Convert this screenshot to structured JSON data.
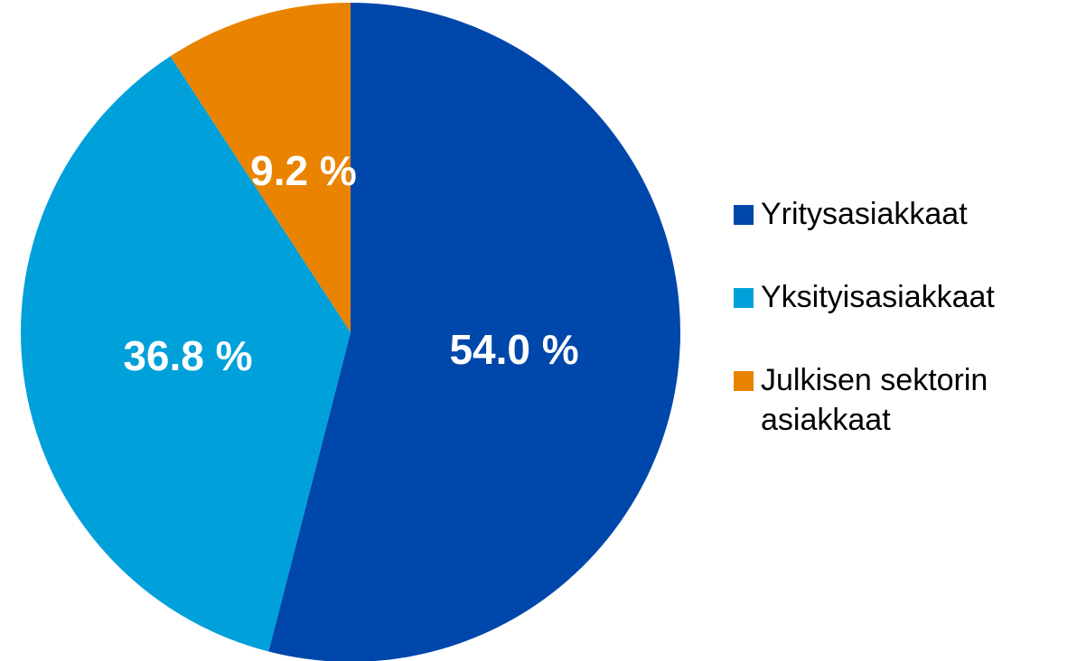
{
  "chart_data": {
    "type": "pie",
    "categories": [
      "Yritysasiakkaat",
      "Yksityisasiakkaat",
      "Julkisen sektorin asiakkaat"
    ],
    "values": [
      54.0,
      36.8,
      9.2
    ],
    "value_labels": [
      "54.0 %",
      "36.8 %",
      "9.2 %"
    ],
    "colors": [
      "#0047AB",
      "#00A0DA",
      "#E98300"
    ],
    "legend": "right"
  }
}
